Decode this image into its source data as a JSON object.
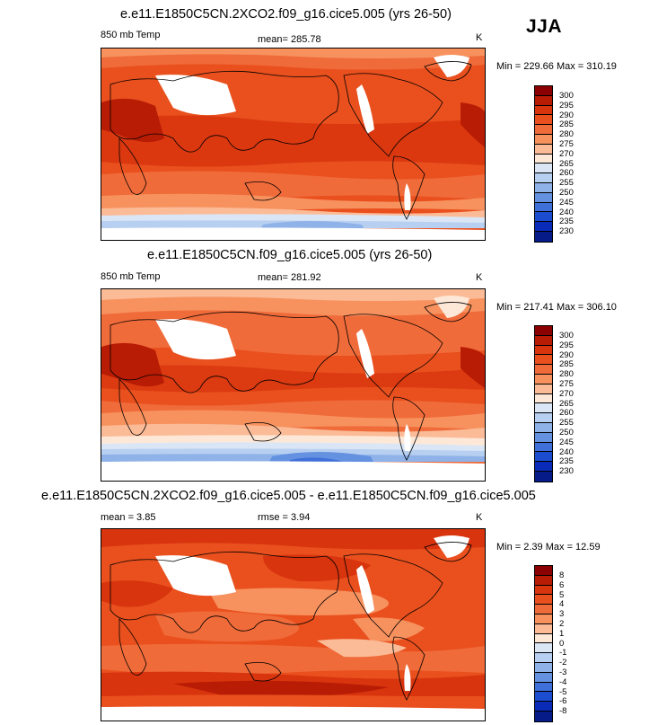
{
  "season": "JJA",
  "panels": [
    {
      "title": "e.e11.E1850C5CN.2XCO2.f09_g16.cice5.005 (yrs 26-50)",
      "left_label": "850 mb Temp",
      "mean_label": "mean= 285.78",
      "unit": "K",
      "minmax": "Min = 229.66 Max = 310.19",
      "levels": [
        "300",
        "295",
        "290",
        "285",
        "280",
        "275",
        "270",
        "265",
        "260",
        "255",
        "250",
        "245",
        "240",
        "235",
        "230"
      ],
      "colors": [
        "#8b0000",
        "#b81c05",
        "#d8340e",
        "#e9501e",
        "#f06b3a",
        "#f7925f",
        "#fbbb97",
        "#fde8d8",
        "#dae6f6",
        "#b7cff0",
        "#8fb2e8",
        "#6592e0",
        "#3f6fd8",
        "#1c4ccf",
        "#0a2bb8",
        "#061a88"
      ]
    },
    {
      "title": "e.e11.E1850C5CN.f09_g16.cice5.005 (yrs 26-50)",
      "left_label": "850 mb Temp",
      "mean_label": "mean= 281.92",
      "unit": "K",
      "minmax": "Min = 217.41 Max = 306.10",
      "levels": [
        "300",
        "295",
        "290",
        "285",
        "280",
        "275",
        "270",
        "265",
        "260",
        "255",
        "250",
        "245",
        "240",
        "235",
        "230"
      ],
      "colors": [
        "#8b0000",
        "#b81c05",
        "#d8340e",
        "#e9501e",
        "#f06b3a",
        "#f7925f",
        "#fbbb97",
        "#fde8d8",
        "#dae6f6",
        "#b7cff0",
        "#8fb2e8",
        "#6592e0",
        "#3f6fd8",
        "#1c4ccf",
        "#0a2bb8",
        "#061a88"
      ]
    },
    {
      "title": "e.e11.E1850C5CN.2XCO2.f09_g16.cice5.005 - e.e11.E1850C5CN.f09_g16.cice5.005",
      "left_label": "mean =   3.85",
      "mean_label": "rmse =   3.94",
      "unit": "K",
      "minmax": "Min =  2.39 Max =  12.59",
      "levels": [
        "8",
        "6",
        "5",
        "4",
        "3",
        "2",
        "1",
        "0",
        "-1",
        "-2",
        "-3",
        "-4",
        "-5",
        "-6",
        "-8"
      ],
      "colors": [
        "#8b0000",
        "#b81c05",
        "#d8340e",
        "#e9501e",
        "#f06b3a",
        "#f7925f",
        "#fbbb97",
        "#fde8d8",
        "#dae6f6",
        "#b7cff0",
        "#8fb2e8",
        "#6592e0",
        "#3f6fd8",
        "#1c4ccf",
        "#0a2bb8",
        "#061a88"
      ]
    }
  ]
}
